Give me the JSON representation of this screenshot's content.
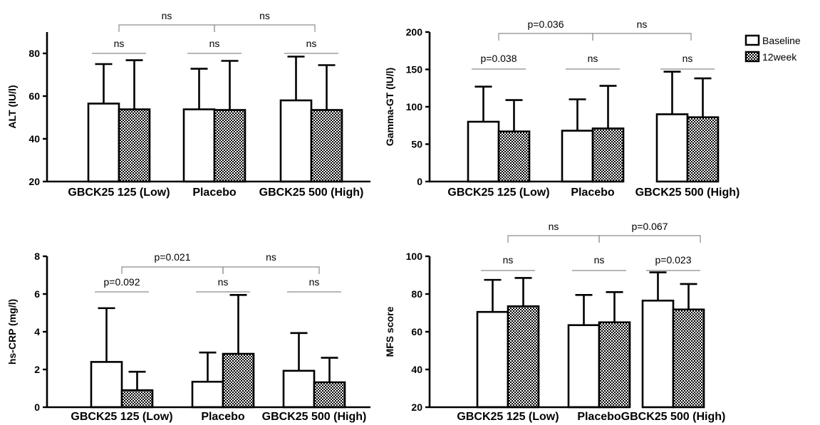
{
  "chart_data": [
    {
      "type": "bar",
      "ylabel": "ALT (IU/l)",
      "categories": [
        "GBCK25  125 (Low)",
        "Placebo",
        "GBCK25  500 (High)"
      ],
      "ylim": [
        20,
        90
      ],
      "yticks": [
        20,
        40,
        60,
        80
      ],
      "series": [
        {
          "name": "Baseline",
          "values": [
            56.5,
            53.8,
            58.0
          ],
          "errors": [
            18.5,
            19.0,
            20.5
          ]
        },
        {
          "name": "12week",
          "values": [
            53.8,
            53.5,
            53.5
          ],
          "errors": [
            23.0,
            23.0,
            21.0
          ]
        }
      ],
      "annotations": [
        {
          "label": "ns",
          "between": [
            "GBCK25  125 (Low)",
            "Placebo"
          ]
        },
        {
          "label": "ns",
          "between": [
            "Placebo",
            "GBCK25  500 (High)"
          ]
        },
        {
          "label": "ns",
          "within": "GBCK25  125 (Low)"
        },
        {
          "label": "ns",
          "within": "Placebo"
        },
        {
          "label": "ns",
          "within": "GBCK25  500 (High)"
        }
      ]
    },
    {
      "type": "bar",
      "ylabel": "Gamma-GT (IU/l)",
      "categories": [
        "GBCK25  125 (Low)",
        "Placebo",
        "GBCK25  500 (High)"
      ],
      "ylim": [
        0,
        200
      ],
      "yticks": [
        0,
        50,
        100,
        150,
        200
      ],
      "series": [
        {
          "name": "Baseline",
          "values": [
            80,
            68,
            90
          ],
          "errors": [
            47,
            42,
            57
          ]
        },
        {
          "name": "12week",
          "values": [
            67,
            71,
            86
          ],
          "errors": [
            42,
            57,
            52
          ]
        }
      ],
      "annotations": [
        {
          "label": "p=0.036",
          "between": [
            "GBCK25  125 (Low)",
            "Placebo"
          ]
        },
        {
          "label": "ns",
          "between": [
            "Placebo",
            "GBCK25  500 (High)"
          ]
        },
        {
          "label": "p=0.038",
          "within": "GBCK25  125 (Low)"
        },
        {
          "label": "ns",
          "within": "Placebo"
        },
        {
          "label": "ns",
          "within": "GBCK25  500 (High)"
        }
      ]
    },
    {
      "type": "bar",
      "ylabel": "hs-CRP (mg/l)",
      "categories": [
        "GBCK25  125 (Low)",
        "Placebo",
        "GBCK25  500 (High)"
      ],
      "ylim": [
        0,
        8
      ],
      "yticks": [
        0,
        2,
        4,
        6,
        8
      ],
      "series": [
        {
          "name": "Baseline",
          "values": [
            2.4,
            1.35,
            1.93
          ],
          "errors": [
            2.85,
            1.55,
            2.0
          ]
        },
        {
          "name": "12week",
          "values": [
            0.9,
            2.83,
            1.32
          ],
          "errors": [
            0.98,
            3.12,
            1.3
          ]
        }
      ],
      "annotations": [
        {
          "label": "p=0.021",
          "between": [
            "GBCK25  125 (Low)",
            "Placebo"
          ]
        },
        {
          "label": "ns",
          "between": [
            "Placebo",
            "GBCK25  500 (High)"
          ]
        },
        {
          "label": "p=0.092",
          "within": "GBCK25  125 (Low)"
        },
        {
          "label": "ns",
          "within": "Placebo"
        },
        {
          "label": "ns",
          "within": "GBCK25  500 (High)"
        }
      ]
    },
    {
      "type": "bar",
      "ylabel": "MFS score",
      "categories": [
        "GBCK25  125 (Low)",
        "Placebo",
        "GBCK25  500 (High)"
      ],
      "ylim": [
        20,
        100
      ],
      "yticks": [
        20,
        40,
        60,
        80,
        100
      ],
      "series": [
        {
          "name": "Baseline",
          "values": [
            70.5,
            63.5,
            76.5
          ],
          "errors": [
            17.0,
            16.0,
            15.0
          ]
        },
        {
          "name": "12week",
          "values": [
            73.5,
            65.0,
            71.8
          ],
          "errors": [
            15.0,
            16.0,
            13.5
          ]
        }
      ],
      "annotations": [
        {
          "label": "ns",
          "between": [
            "GBCK25  125 (Low)",
            "Placebo"
          ]
        },
        {
          "label": "p=0.067",
          "between": [
            "Placebo",
            "GBCK25  500 (High)"
          ]
        },
        {
          "label": "ns",
          "within": "GBCK25  125 (Low)"
        },
        {
          "label": "ns",
          "within": "Placebo"
        },
        {
          "label": "p=0.023",
          "within": "GBCK25  500 (High)"
        }
      ]
    }
  ],
  "legend": {
    "placement": "top-right",
    "items": [
      {
        "label": "Baseline",
        "pattern": "open"
      },
      {
        "label": "12week",
        "pattern": "checkered"
      }
    ]
  },
  "colors": {
    "ink": "#000000",
    "bar_fill": "#ffffff",
    "bracket": "#8c8c8c"
  }
}
